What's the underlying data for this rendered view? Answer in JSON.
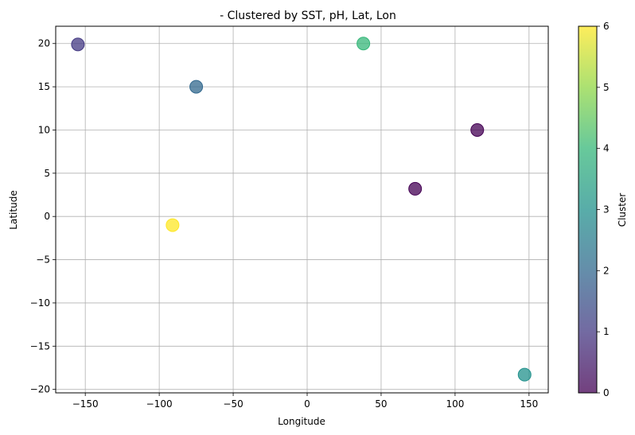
{
  "chart_data": {
    "type": "scatter",
    "title": "- Clustered by SST, pH, Lat, Lon",
    "xlabel": "Longitude",
    "ylabel": "Latitude",
    "xlim": [
      -170,
      163
    ],
    "ylim": [
      -20.4,
      22
    ],
    "xticks": [
      -150,
      -100,
      -50,
      0,
      50,
      100,
      150
    ],
    "xtick_labels": [
      "−150",
      "−100",
      "−50",
      "0",
      "50",
      "100",
      "150"
    ],
    "yticks": [
      -20,
      -15,
      -10,
      -5,
      0,
      5,
      10,
      15,
      20
    ],
    "ytick_labels": [
      "−20",
      "−15",
      "−10",
      "−5",
      "0",
      "5",
      "10",
      "15",
      "20"
    ],
    "grid": true,
    "colorbar": {
      "label": "Cluster",
      "range": [
        0,
        6
      ],
      "ticks": [
        0,
        1,
        2,
        3,
        4,
        5,
        6
      ],
      "tick_labels": [
        "0",
        "1",
        "2",
        "3",
        "4",
        "5",
        "6"
      ],
      "colormap": "viridis",
      "alpha": 0.75
    },
    "points": [
      {
        "x": -155,
        "y": 19.9,
        "cluster": 1
      },
      {
        "x": -75,
        "y": 15.0,
        "cluster": 2
      },
      {
        "x": -91,
        "y": -1.0,
        "cluster": 6
      },
      {
        "x": 38,
        "y": 20.0,
        "cluster": 4
      },
      {
        "x": 73,
        "y": 3.2,
        "cluster": 0
      },
      {
        "x": 115,
        "y": 10.0,
        "cluster": 0
      },
      {
        "x": 147,
        "y": -18.3,
        "cluster": 3
      }
    ]
  }
}
